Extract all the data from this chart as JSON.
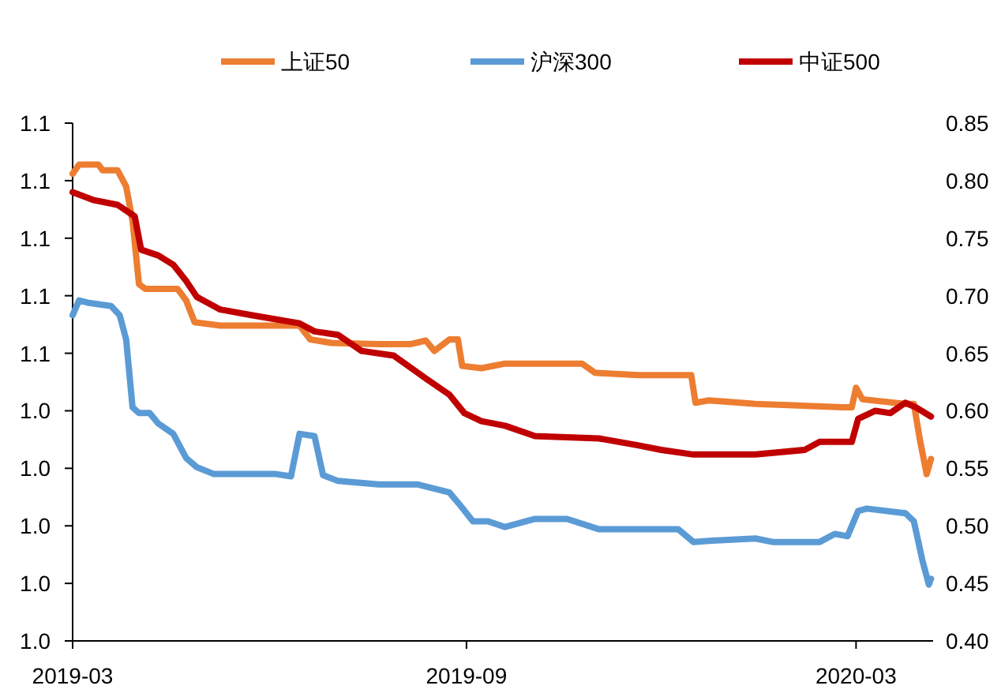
{
  "chart_data": {
    "type": "line",
    "xlim": [
      "2019-03-01",
      "2020-04-06"
    ],
    "xticks": [
      "2019-03",
      "2019-09",
      "2020-03"
    ],
    "ylim": [
      0.96,
      1.14
    ],
    "yticks": [
      {
        "value": 0.96,
        "label": "1.0"
      },
      {
        "value": 0.98,
        "label": "1.0"
      },
      {
        "value": 1.0,
        "label": "1.0"
      },
      {
        "value": 1.02,
        "label": "1.0"
      },
      {
        "value": 1.04,
        "label": "1.0"
      },
      {
        "value": 1.06,
        "label": "1.1"
      },
      {
        "value": 1.08,
        "label": "1.1"
      },
      {
        "value": 1.1,
        "label": "1.1"
      },
      {
        "value": 1.12,
        "label": "1.1"
      },
      {
        "value": 1.14,
        "label": "1.1"
      }
    ],
    "y2lim": [
      0.4,
      0.85
    ],
    "y2ticks": [
      {
        "value": 0.4,
        "label": "0.40"
      },
      {
        "value": 0.45,
        "label": "0.45"
      },
      {
        "value": 0.5,
        "label": "0.50"
      },
      {
        "value": 0.55,
        "label": "0.55"
      },
      {
        "value": 0.6,
        "label": "0.60"
      },
      {
        "value": 0.65,
        "label": "0.65"
      },
      {
        "value": 0.7,
        "label": "0.70"
      },
      {
        "value": 0.75,
        "label": "0.75"
      },
      {
        "value": 0.8,
        "label": "0.80"
      },
      {
        "value": 0.85,
        "label": "0.85"
      }
    ],
    "legend": "top",
    "grid": false,
    "marker": "none",
    "line_style": "solid",
    "series": [
      {
        "name": "上证50",
        "color": "#ed7d31",
        "axis": "y2",
        "x": [
          "2019-03-01",
          "2019-03-04",
          "2019-03-13",
          "2019-03-15",
          "2019-03-22",
          "2019-03-26",
          "2019-03-29",
          "2019-04-01",
          "2019-04-04",
          "2019-04-19",
          "2019-04-23",
          "2019-04-27",
          "2019-05-09",
          "2019-06-15",
          "2019-06-20",
          "2019-06-30",
          "2019-07-22",
          "2019-08-06",
          "2019-08-13",
          "2019-08-17",
          "2019-08-24",
          "2019-08-28",
          "2019-08-30",
          "2019-09-08",
          "2019-09-19",
          "2019-09-26",
          "2019-10-25",
          "2019-10-31",
          "2019-11-20",
          "2019-12-15",
          "2019-12-17",
          "2019-12-23",
          "2020-01-07",
          "2020-01-14",
          "2020-02-24",
          "2020-02-28",
          "2020-03-01",
          "2020-03-04",
          "2020-03-24",
          "2020-03-28",
          "2020-03-31",
          "2020-04-03",
          "2020-04-05"
        ],
        "values": [
          0.806,
          0.814,
          0.814,
          0.809,
          0.809,
          0.795,
          0.765,
          0.71,
          0.706,
          0.706,
          0.696,
          0.677,
          0.674,
          0.674,
          0.662,
          0.659,
          0.658,
          0.658,
          0.661,
          0.652,
          0.662,
          0.662,
          0.639,
          0.637,
          0.641,
          0.641,
          0.641,
          0.633,
          0.631,
          0.631,
          0.607,
          0.609,
          0.607,
          0.606,
          0.603,
          0.603,
          0.62,
          0.61,
          0.606,
          0.606,
          0.573,
          0.545,
          0.558
        ]
      },
      {
        "name": "沪深300",
        "color": "#5b9bd5",
        "axis": "y2",
        "x": [
          "2019-03-01",
          "2019-03-04",
          "2019-03-08",
          "2019-03-19",
          "2019-03-23",
          "2019-03-26",
          "2019-03-29",
          "2019-04-01",
          "2019-04-06",
          "2019-04-10",
          "2019-04-17",
          "2019-04-23",
          "2019-04-28",
          "2019-05-06",
          "2019-06-04",
          "2019-06-11",
          "2019-06-15",
          "2019-06-22",
          "2019-06-26",
          "2019-07-03",
          "2019-07-22",
          "2019-08-09",
          "2019-08-24",
          "2019-08-29",
          "2019-09-04",
          "2019-09-11",
          "2019-09-19",
          "2019-10-03",
          "2019-10-18",
          "2019-11-02",
          "2019-12-09",
          "2019-12-16",
          "2019-12-23",
          "2020-01-14",
          "2020-01-22",
          "2020-02-13",
          "2020-02-20",
          "2020-02-26",
          "2020-03-02",
          "2020-03-06",
          "2020-03-24",
          "2020-03-28",
          "2020-04-01",
          "2020-04-04",
          "2020-04-05"
        ],
        "values": [
          0.683,
          0.696,
          0.694,
          0.691,
          0.683,
          0.662,
          0.603,
          0.598,
          0.598,
          0.589,
          0.58,
          0.559,
          0.551,
          0.545,
          0.545,
          0.543,
          0.58,
          0.578,
          0.544,
          0.539,
          0.536,
          0.536,
          0.529,
          0.518,
          0.504,
          0.504,
          0.499,
          0.506,
          0.506,
          0.497,
          0.497,
          0.486,
          0.487,
          0.489,
          0.486,
          0.486,
          0.493,
          0.491,
          0.513,
          0.515,
          0.511,
          0.504,
          0.47,
          0.449,
          0.454
        ]
      },
      {
        "name": "中证500",
        "color": "#c00000",
        "axis": "y2",
        "x": [
          "2019-03-01",
          "2019-03-11",
          "2019-03-22",
          "2019-03-30",
          "2019-04-02",
          "2019-04-10",
          "2019-04-17",
          "2019-04-23",
          "2019-04-28",
          "2019-05-09",
          "2019-05-24",
          "2019-06-15",
          "2019-06-22",
          "2019-07-03",
          "2019-07-14",
          "2019-07-29",
          "2019-08-13",
          "2019-08-24",
          "2019-08-31",
          "2019-09-08",
          "2019-09-19",
          "2019-10-03",
          "2019-11-02",
          "2019-11-20",
          "2019-12-01",
          "2019-12-16",
          "2020-01-14",
          "2020-02-06",
          "2020-02-13",
          "2020-02-28",
          "2020-03-02",
          "2020-03-10",
          "2020-03-17",
          "2020-03-24",
          "2020-03-29",
          "2020-04-05"
        ],
        "values": [
          0.79,
          0.783,
          0.779,
          0.769,
          0.74,
          0.735,
          0.727,
          0.713,
          0.699,
          0.688,
          0.683,
          0.676,
          0.669,
          0.666,
          0.652,
          0.648,
          0.628,
          0.614,
          0.598,
          0.591,
          0.587,
          0.578,
          0.576,
          0.57,
          0.566,
          0.562,
          0.562,
          0.566,
          0.573,
          0.573,
          0.593,
          0.6,
          0.598,
          0.607,
          0.603,
          0.595
        ]
      }
    ]
  }
}
